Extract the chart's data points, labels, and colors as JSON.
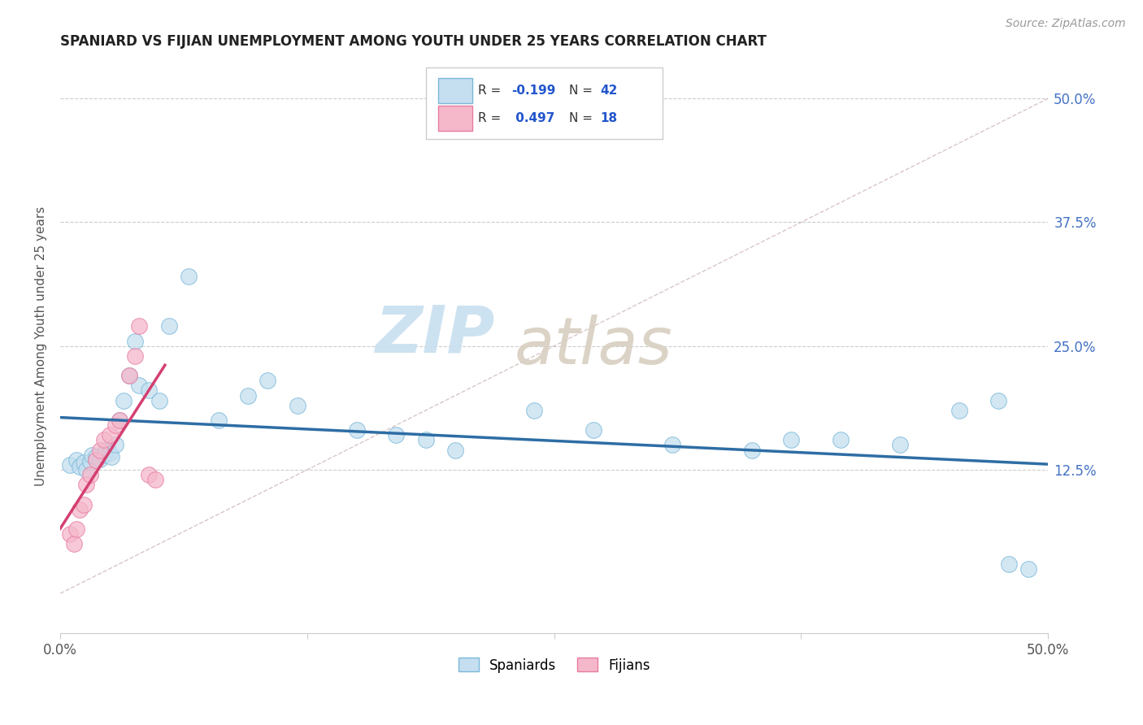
{
  "title": "SPANIARD VS FIJIAN UNEMPLOYMENT AMONG YOUTH UNDER 25 YEARS CORRELATION CHART",
  "source": "Source: ZipAtlas.com",
  "ylabel": "Unemployment Among Youth under 25 years",
  "xlim": [
    0.0,
    0.5
  ],
  "ylim": [
    -0.04,
    0.54
  ],
  "xtick_positions": [
    0.0,
    0.125,
    0.25,
    0.375,
    0.5
  ],
  "xticklabels": [
    "0.0%",
    "",
    "",
    "",
    "50.0%"
  ],
  "ytick_positions": [
    0.125,
    0.25,
    0.375,
    0.5
  ],
  "ytick_labels": [
    "12.5%",
    "25.0%",
    "37.5%",
    "50.0%"
  ],
  "spaniard_color_edge": "#7ab8d9",
  "spaniard_color_face": "#c5dff0",
  "fijian_color_edge": "#e87ca0",
  "fijian_color_face": "#f5b8cb",
  "spaniard_line_color": "#2e6da4",
  "fijian_line_color": "#d44070",
  "diagonal_color": "#d0b8b8",
  "spaniard_x": [
    0.005,
    0.008,
    0.01,
    0.012,
    0.013,
    0.015,
    0.016,
    0.018,
    0.02,
    0.022,
    0.023,
    0.025,
    0.026,
    0.028,
    0.03,
    0.032,
    0.035,
    0.038,
    0.04,
    0.045,
    0.05,
    0.055,
    0.065,
    0.08,
    0.095,
    0.105,
    0.12,
    0.15,
    0.17,
    0.185,
    0.2,
    0.24,
    0.27,
    0.31,
    0.35,
    0.37,
    0.395,
    0.425,
    0.455,
    0.475,
    0.48,
    0.49
  ],
  "spaniard_y": [
    0.13,
    0.135,
    0.128,
    0.132,
    0.125,
    0.133,
    0.14,
    0.138,
    0.136,
    0.14,
    0.145,
    0.142,
    0.138,
    0.15,
    0.175,
    0.195,
    0.22,
    0.255,
    0.21,
    0.205,
    0.195,
    0.27,
    0.32,
    0.175,
    0.2,
    0.215,
    0.19,
    0.165,
    0.16,
    0.155,
    0.145,
    0.185,
    0.165,
    0.15,
    0.145,
    0.155,
    0.155,
    0.15,
    0.185,
    0.195,
    0.03,
    0.025
  ],
  "fijian_x": [
    0.005,
    0.007,
    0.008,
    0.01,
    0.012,
    0.013,
    0.015,
    0.018,
    0.02,
    0.022,
    0.025,
    0.028,
    0.03,
    0.035,
    0.038,
    0.04,
    0.045,
    0.048
  ],
  "fijian_y": [
    0.06,
    0.05,
    0.065,
    0.085,
    0.09,
    0.11,
    0.12,
    0.135,
    0.145,
    0.155,
    0.16,
    0.17,
    0.175,
    0.22,
    0.24,
    0.27,
    0.12,
    0.115
  ]
}
